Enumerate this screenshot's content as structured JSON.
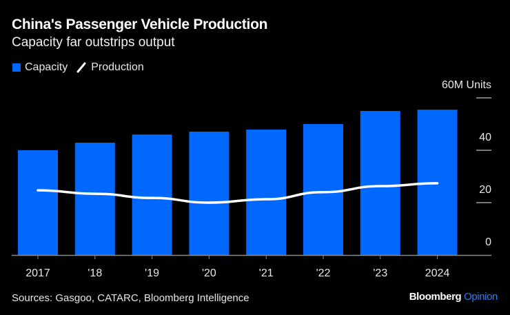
{
  "header": {
    "title": "China's Passenger Vehicle Production",
    "subtitle": "Capacity far outstrips output"
  },
  "legend": {
    "items": [
      {
        "label": "Capacity",
        "icon": "square-swatch",
        "color": "#0068ff"
      },
      {
        "label": "Production",
        "icon": "line-swatch",
        "color": "#ffffff"
      }
    ]
  },
  "footer": {
    "source": "Sources: Gasgoo, CATARC, Bloomberg Intelligence",
    "brand_main": "Bloomberg",
    "brand_accent": "Opinion",
    "brand_accent_color": "#2f7cf6"
  },
  "chart_data": {
    "type": "bar",
    "title": "China's Passenger Vehicle Production",
    "subtitle": "Capacity far outstrips output",
    "categories": [
      "2017",
      "'18",
      "'19",
      "'20",
      "'21",
      "'22",
      "'23",
      "2024"
    ],
    "series": [
      {
        "name": "Capacity",
        "type": "bar",
        "color": "#0068ff",
        "values": [
          40.0,
          42.9,
          46.0,
          47.1,
          47.9,
          50.0,
          55.0,
          55.5
        ]
      },
      {
        "name": "Production",
        "type": "line",
        "color": "#ffffff",
        "values": [
          24.7,
          23.4,
          21.8,
          20.0,
          21.3,
          24.0,
          26.3,
          27.4
        ]
      }
    ],
    "xlabel": "",
    "ylabel": "M Units",
    "y_unit_label": "60M Units",
    "ylim": [
      0,
      60
    ],
    "yticks": [
      0,
      20,
      40,
      60
    ],
    "ytick_labels": [
      "0",
      "20",
      "40",
      "60M Units"
    ],
    "y_axis_position": "right",
    "grid": false,
    "legend_position": "top-left"
  }
}
